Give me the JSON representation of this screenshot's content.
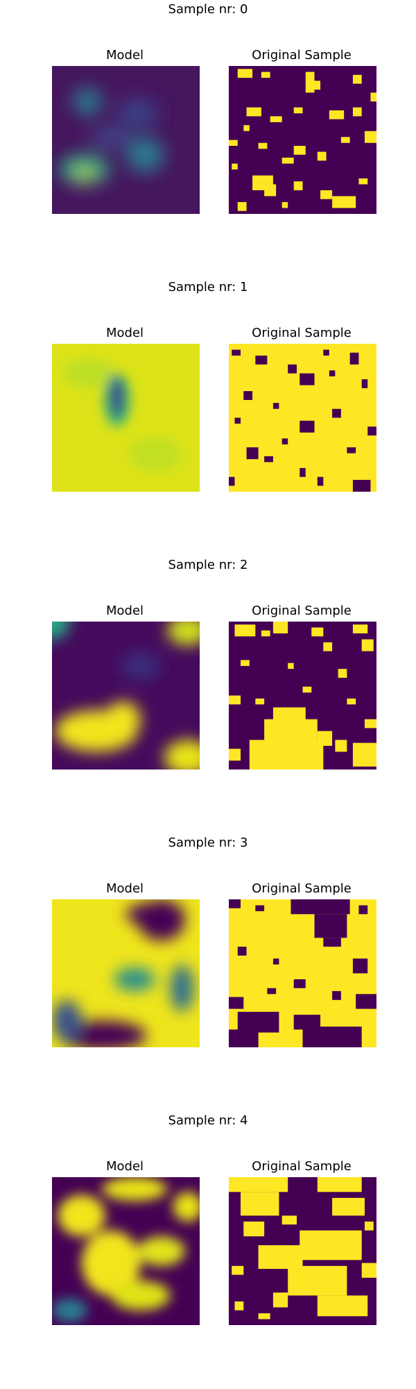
{
  "samples": [
    {
      "suptitle": "Sample nr: 0",
      "model_label": "Model",
      "original_label": "Original Sample"
    },
    {
      "suptitle": "Sample nr: 1",
      "model_label": "Model",
      "original_label": "Original Sample"
    },
    {
      "suptitle": "Sample nr: 2",
      "model_label": "Model",
      "original_label": "Original Sample"
    },
    {
      "suptitle": "Sample nr: 3",
      "model_label": "Model",
      "original_label": "Original Sample"
    },
    {
      "suptitle": "Sample nr: 4",
      "model_label": "Model",
      "original_label": "Original Sample"
    }
  ],
  "colormap": {
    "name": "viridis",
    "low": "#440154",
    "mid": "#21908d",
    "high": "#fde725"
  }
}
